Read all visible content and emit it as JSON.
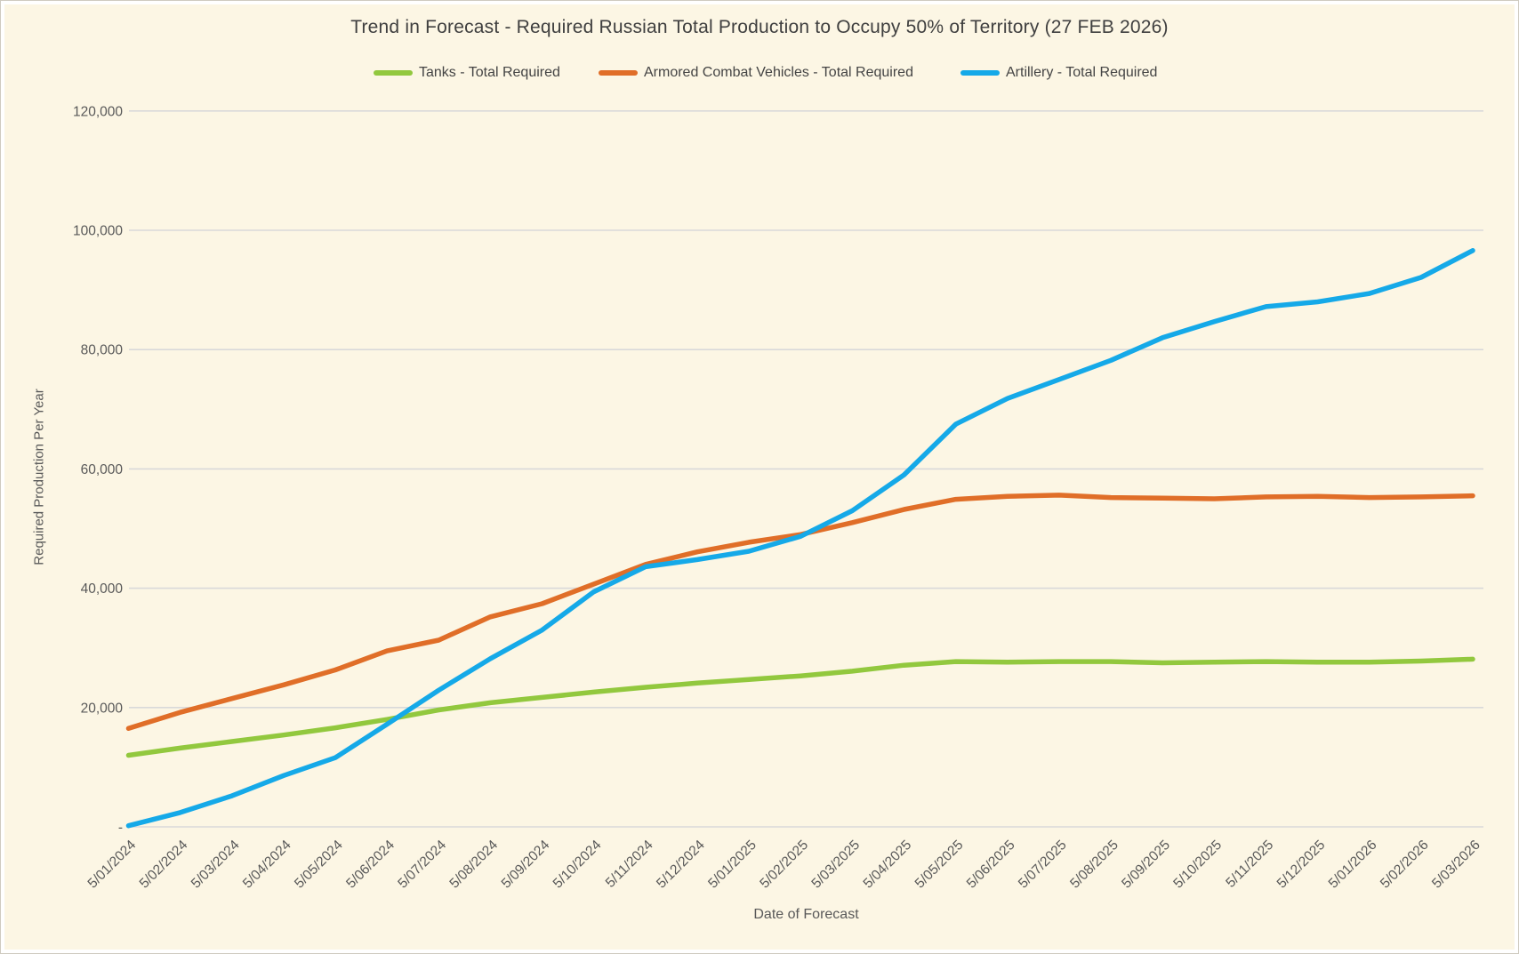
{
  "title": "Trend in Forecast - Required Russian Total Production to Occupy 50% of Territory (27 FEB 2026)",
  "colors": {
    "background": "#FCF6E4",
    "gridline": "#D9D9D9",
    "axis_text": "#595959",
    "title_text": "#3F3F3F",
    "tanks_green": "#92C83E",
    "acv_orange": "#E06E28",
    "artillery_blue": "#15A9E8"
  },
  "chart_data": {
    "type": "line",
    "title": "Trend in Forecast - Required Russian Total Production to Occupy 50% of Territory (27 FEB 2026)",
    "x_axis_label": "Date of Forecast",
    "y_axis_label": "Required Production Per Year",
    "ylim": [
      0,
      120000
    ],
    "grid": true,
    "legend_position": "top",
    "y_ticks": [
      {
        "label": "120,000",
        "value": 120000
      },
      {
        "label": "100,000",
        "value": 100000
      },
      {
        "label": "80,000",
        "value": 80000
      },
      {
        "label": "60,000",
        "value": 60000
      },
      {
        "label": "40,000",
        "value": 40000
      },
      {
        "label": "20,000",
        "value": 20000
      },
      {
        "label": "-",
        "value": 0
      }
    ],
    "x_labels": [
      "5/01/2024",
      "5/02/2024",
      "5/03/2024",
      "5/04/2024",
      "5/05/2024",
      "5/06/2024",
      "5/07/2024",
      "5/08/2024",
      "5/09/2024",
      "5/10/2024",
      "5/11/2024",
      "5/12/2024",
      "5/01/2025",
      "5/02/2025",
      "5/03/2025",
      "5/04/2025",
      "5/05/2025",
      "5/06/2025",
      "5/07/2025",
      "5/08/2025",
      "5/09/2025",
      "5/10/2025",
      "5/11/2025",
      "5/12/2025",
      "5/01/2026",
      "5/02/2026",
      "5/03/2026"
    ],
    "series": [
      {
        "name": "Tanks - Total Required",
        "color": "#92C83E",
        "values": [
          12000,
          13200,
          14300,
          15400,
          16600,
          18000,
          19600,
          20800,
          21700,
          22600,
          23400,
          24100,
          24700,
          25300,
          26100,
          27100,
          27700,
          27600,
          27700,
          27700,
          27500,
          27600,
          27700,
          27600,
          27600,
          27800,
          28100
        ]
      },
      {
        "name": "Armored Combat Vehicles - Total Required",
        "color": "#E06E28",
        "values": [
          16500,
          19200,
          21500,
          23800,
          26300,
          29500,
          31300,
          35200,
          37400,
          40700,
          44000,
          46100,
          47700,
          49000,
          51000,
          53200,
          54900,
          55400,
          55600,
          55200,
          55100,
          55000,
          55300,
          55400,
          55200,
          55300,
          55500
        ]
      },
      {
        "name": "Artillery - Total Required",
        "color": "#15A9E8",
        "values": [
          200,
          2400,
          5200,
          8600,
          11600,
          17200,
          22900,
          28200,
          33000,
          39400,
          43600,
          44800,
          46200,
          48700,
          53000,
          59000,
          67500,
          71800,
          75000,
          78200,
          82000,
          84700,
          87200,
          88000,
          89400,
          92100,
          96600
        ]
      }
    ]
  }
}
